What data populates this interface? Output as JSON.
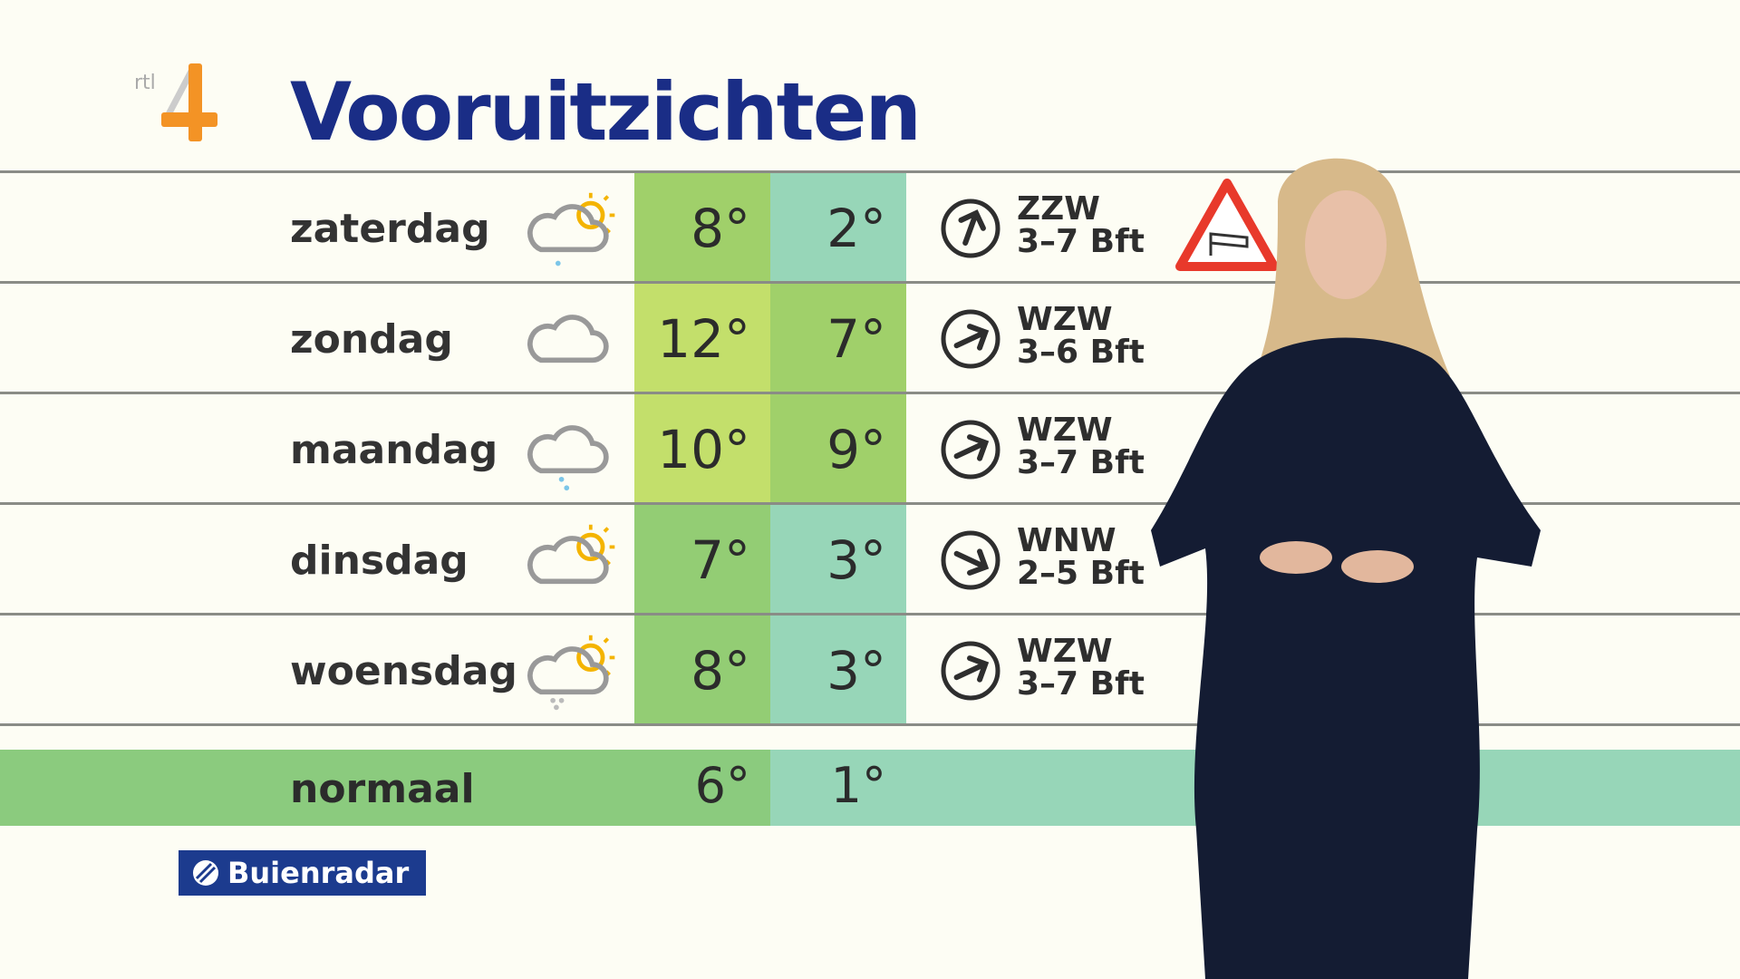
{
  "logo": {
    "text": "rtl 4",
    "accent": "#f39325"
  },
  "title": "Vooruitzichten",
  "days": [
    {
      "day": "zaterdag",
      "icon": "sun-cloud-rain-icon",
      "max": "8°",
      "min": "2°",
      "max_color": "#a0d06a",
      "min_color": "#97d6b8",
      "wind_dir": "ZZW",
      "wind_force": "3–7 Bft",
      "arrow_rotation_deg": 20
    },
    {
      "day": "zondag",
      "icon": "cloud-icon",
      "max": "12°",
      "min": "7°",
      "max_color": "#c3df6b",
      "min_color": "#a0d06a",
      "wind_dir": "WZW",
      "wind_force": "3–6 Bft",
      "arrow_rotation_deg": 65
    },
    {
      "day": "maandag",
      "icon": "cloud-drizzle-icon",
      "max": "10°",
      "min": "9°",
      "max_color": "#c3df6b",
      "min_color": "#a0d06a",
      "wind_dir": "WZW",
      "wind_force": "3–7 Bft",
      "arrow_rotation_deg": 65
    },
    {
      "day": "dinsdag",
      "icon": "sun-cloud-icon",
      "max": "7°",
      "min": "3°",
      "max_color": "#93cd74",
      "min_color": "#97d6b8",
      "wind_dir": "WNW",
      "wind_force": "2–5 Bft",
      "arrow_rotation_deg": 115
    },
    {
      "day": "woensdag",
      "icon": "sun-cloud-snow-icon",
      "max": "8°",
      "min": "3°",
      "max_color": "#93cd74",
      "min_color": "#97d6b8",
      "wind_dir": "WZW",
      "wind_force": "3–7 Bft",
      "arrow_rotation_deg": 65
    }
  ],
  "normal": {
    "label": "normaal",
    "max": "6°",
    "min": "1°"
  },
  "warning": {
    "icon": "wind-warning-icon",
    "color": "#e8392b"
  },
  "brand": {
    "label": "Buienradar",
    "color": "#1c3b8e"
  }
}
